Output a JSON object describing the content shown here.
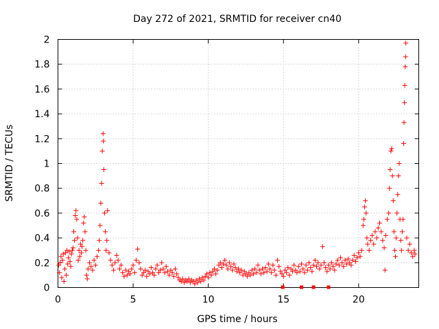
{
  "chart_data": {
    "type": "scatter",
    "title": "Day 272 of 2021, SRMTID for receiver cn40",
    "xlabel": "GPS time / hours",
    "ylabel": "SRMTID / TECUs",
    "xlim": [
      0,
      24
    ],
    "ylim": [
      0,
      2
    ],
    "x_ticks": [
      0,
      5,
      10,
      15,
      20
    ],
    "x_tick_labels": [
      "0",
      "5",
      "10",
      "15",
      "20"
    ],
    "y_ticks": [
      0,
      0.2,
      0.4,
      0.6,
      0.8,
      1,
      1.2,
      1.4,
      1.6,
      1.8,
      2
    ],
    "y_tick_labels": [
      "0",
      "0.2",
      "0.4",
      "0.6",
      "0.8",
      "1",
      "1.2",
      "1.4",
      "1.6",
      "1.8",
      "2"
    ],
    "grid": true,
    "marker": "+",
    "series": [
      {
        "name": "SRMTID",
        "color": "#ff0000",
        "points": [
          [
            0.05,
            0.18
          ],
          [
            0.1,
            0.12
          ],
          [
            0.15,
            0.2
          ],
          [
            0.2,
            0.25
          ],
          [
            0.25,
            0.08
          ],
          [
            0.3,
            0.22
          ],
          [
            0.35,
            0.27
          ],
          [
            0.4,
            0.05
          ],
          [
            0.45,
            0.15
          ],
          [
            0.5,
            0.28
          ],
          [
            0.55,
            0.1
          ],
          [
            0.6,
            0.3
          ],
          [
            0.65,
            0.19
          ],
          [
            0.7,
            0.24
          ],
          [
            0.75,
            0.29
          ],
          [
            0.8,
            0.21
          ],
          [
            0.85,
            0.17
          ],
          [
            0.9,
            0.27
          ],
          [
            0.95,
            0.3
          ],
          [
            1.0,
            0.32
          ],
          [
            1.05,
            0.45
          ],
          [
            1.1,
            0.38
          ],
          [
            1.15,
            0.58
          ],
          [
            1.2,
            0.62
          ],
          [
            1.25,
            0.55
          ],
          [
            1.3,
            0.4
          ],
          [
            1.35,
            0.22
          ],
          [
            1.4,
            0.3
          ],
          [
            1.45,
            0.25
          ],
          [
            1.5,
            0.35
          ],
          [
            1.55,
            0.28
          ],
          [
            1.6,
            0.33
          ],
          [
            1.65,
            0.38
          ],
          [
            1.7,
            0.52
          ],
          [
            1.75,
            0.57
          ],
          [
            1.8,
            0.45
          ],
          [
            1.85,
            0.3
          ],
          [
            1.9,
            0.1
          ],
          [
            1.95,
            0.07
          ],
          [
            2.0,
            0.15
          ],
          [
            2.1,
            0.2
          ],
          [
            2.2,
            0.17
          ],
          [
            2.3,
            0.14
          ],
          [
            2.4,
            0.22
          ],
          [
            2.5,
            0.18
          ],
          [
            2.6,
            0.25
          ],
          [
            2.7,
            0.3
          ],
          [
            2.75,
            0.38
          ],
          [
            2.8,
            0.5
          ],
          [
            2.85,
            0.68
          ],
          [
            2.9,
            0.84
          ],
          [
            2.95,
            1.1
          ],
          [
            3.0,
            1.24
          ],
          [
            3.02,
            1.18
          ],
          [
            3.05,
            0.95
          ],
          [
            3.1,
            0.6
          ],
          [
            3.15,
            0.45
          ],
          [
            3.2,
            0.3
          ],
          [
            3.25,
            0.38
          ],
          [
            3.3,
            0.62
          ],
          [
            3.4,
            0.28
          ],
          [
            3.5,
            0.22
          ],
          [
            3.6,
            0.18
          ],
          [
            3.7,
            0.14
          ],
          [
            3.8,
            0.2
          ],
          [
            3.9,
            0.26
          ],
          [
            4.0,
            0.22
          ],
          [
            4.1,
            0.15
          ],
          [
            4.2,
            0.18
          ],
          [
            4.3,
            0.12
          ],
          [
            4.4,
            0.09
          ],
          [
            4.5,
            0.14
          ],
          [
            4.6,
            0.1
          ],
          [
            4.7,
            0.13
          ],
          [
            4.8,
            0.11
          ],
          [
            4.9,
            0.15
          ],
          [
            5.0,
            0.18
          ],
          [
            5.1,
            0.12
          ],
          [
            5.2,
            0.22
          ],
          [
            5.3,
            0.31
          ],
          [
            5.4,
            0.2
          ],
          [
            5.5,
            0.15
          ],
          [
            5.6,
            0.1
          ],
          [
            5.7,
            0.12
          ],
          [
            5.8,
            0.14
          ],
          [
            5.9,
            0.09
          ],
          [
            6.0,
            0.13
          ],
          [
            6.1,
            0.11
          ],
          [
            6.2,
            0.16
          ],
          [
            6.3,
            0.12
          ],
          [
            6.4,
            0.1
          ],
          [
            6.5,
            0.15
          ],
          [
            6.6,
            0.18
          ],
          [
            6.7,
            0.12
          ],
          [
            6.8,
            0.14
          ],
          [
            6.9,
            0.2
          ],
          [
            7.0,
            0.15
          ],
          [
            7.1,
            0.12
          ],
          [
            7.2,
            0.17
          ],
          [
            7.3,
            0.13
          ],
          [
            7.4,
            0.1
          ],
          [
            7.5,
            0.14
          ],
          [
            7.6,
            0.12
          ],
          [
            7.7,
            0.09
          ],
          [
            7.8,
            0.15
          ],
          [
            7.9,
            0.11
          ],
          [
            8.0,
            0.08
          ],
          [
            8.1,
            0.06
          ],
          [
            8.2,
            0.05
          ],
          [
            8.3,
            0.07
          ],
          [
            8.4,
            0.04
          ],
          [
            8.5,
            0.06
          ],
          [
            8.6,
            0.05
          ],
          [
            8.7,
            0.07
          ],
          [
            8.8,
            0.04
          ],
          [
            8.9,
            0.06
          ],
          [
            9.0,
            0.05
          ],
          [
            9.1,
            0.03
          ],
          [
            9.2,
            0.06
          ],
          [
            9.3,
            0.04
          ],
          [
            9.4,
            0.07
          ],
          [
            9.5,
            0.05
          ],
          [
            9.6,
            0.08
          ],
          [
            9.7,
            0.06
          ],
          [
            9.8,
            0.09
          ],
          [
            9.9,
            0.11
          ],
          [
            10.0,
            0.08
          ],
          [
            10.1,
            0.12
          ],
          [
            10.2,
            0.1
          ],
          [
            10.3,
            0.13
          ],
          [
            10.4,
            0.15
          ],
          [
            10.5,
            0.11
          ],
          [
            10.6,
            0.14
          ],
          [
            10.7,
            0.18
          ],
          [
            10.8,
            0.2
          ],
          [
            10.9,
            0.16
          ],
          [
            11.0,
            0.19
          ],
          [
            11.1,
            0.22
          ],
          [
            11.2,
            0.18
          ],
          [
            11.3,
            0.15
          ],
          [
            11.4,
            0.2
          ],
          [
            11.5,
            0.17
          ],
          [
            11.6,
            0.14
          ],
          [
            11.7,
            0.19
          ],
          [
            11.8,
            0.16
          ],
          [
            11.9,
            0.13
          ],
          [
            12.0,
            0.15
          ],
          [
            12.1,
            0.12
          ],
          [
            12.2,
            0.14
          ],
          [
            12.3,
            0.1
          ],
          [
            12.4,
            0.13
          ],
          [
            12.5,
            0.11
          ],
          [
            12.6,
            0.09
          ],
          [
            12.7,
            0.12
          ],
          [
            12.8,
            0.1
          ],
          [
            12.9,
            0.14
          ],
          [
            13.0,
            0.11
          ],
          [
            13.1,
            0.15
          ],
          [
            13.2,
            0.12
          ],
          [
            13.3,
            0.18
          ],
          [
            13.4,
            0.14
          ],
          [
            13.5,
            0.11
          ],
          [
            13.6,
            0.15
          ],
          [
            13.7,
            0.12
          ],
          [
            13.8,
            0.16
          ],
          [
            13.9,
            0.13
          ],
          [
            14.0,
            0.19
          ],
          [
            14.1,
            0.15
          ],
          [
            14.2,
            0.12
          ],
          [
            14.3,
            0.18
          ],
          [
            14.4,
            0.14
          ],
          [
            14.5,
            0.1
          ],
          [
            14.6,
            0.22
          ],
          [
            14.7,
            0.17
          ],
          [
            14.8,
            0.13
          ],
          [
            14.9,
            0.11
          ],
          [
            15.0,
            0.09
          ],
          [
            15.1,
            0.14
          ],
          [
            15.2,
            0.12
          ],
          [
            15.3,
            0.16
          ],
          [
            15.4,
            0.1
          ],
          [
            15.5,
            0.15
          ],
          [
            15.6,
            0.13
          ],
          [
            15.7,
            0.18
          ],
          [
            15.8,
            0.14
          ],
          [
            15.9,
            0.12
          ],
          [
            16.0,
            0.17
          ],
          [
            16.1,
            0.13
          ],
          [
            16.2,
            0.19
          ],
          [
            16.3,
            0.15
          ],
          [
            16.4,
            0.12
          ],
          [
            16.5,
            0.18
          ],
          [
            16.6,
            0.14
          ],
          [
            16.7,
            0.2
          ],
          [
            16.8,
            0.16
          ],
          [
            16.9,
            0.13
          ],
          [
            17.0,
            0.18
          ],
          [
            17.1,
            0.22
          ],
          [
            17.2,
            0.17
          ],
          [
            17.3,
            0.2
          ],
          [
            17.4,
            0.15
          ],
          [
            17.5,
            0.18
          ],
          [
            17.6,
            0.33
          ],
          [
            17.7,
            0.2
          ],
          [
            17.8,
            0.16
          ],
          [
            17.9,
            0.13
          ],
          [
            18.0,
            0.18
          ],
          [
            18.1,
            0.15
          ],
          [
            18.2,
            0.2
          ],
          [
            18.3,
            0.17
          ],
          [
            18.4,
            0.14
          ],
          [
            18.5,
            0.19
          ],
          [
            18.6,
            0.22
          ],
          [
            18.7,
            0.18
          ],
          [
            18.8,
            0.24
          ],
          [
            18.9,
            0.2
          ],
          [
            19.0,
            0.17
          ],
          [
            19.1,
            0.22
          ],
          [
            19.2,
            0.19
          ],
          [
            19.3,
            0.23
          ],
          [
            19.4,
            0.2
          ],
          [
            19.5,
            0.18
          ],
          [
            19.6,
            0.22
          ],
          [
            19.7,
            0.26
          ],
          [
            19.8,
            0.21
          ],
          [
            19.9,
            0.24
          ],
          [
            20.0,
            0.28
          ],
          [
            20.1,
            0.25
          ],
          [
            20.2,
            0.3
          ],
          [
            20.3,
            0.5
          ],
          [
            20.35,
            0.55
          ],
          [
            20.4,
            0.65
          ],
          [
            20.45,
            0.7
          ],
          [
            20.5,
            0.6
          ],
          [
            20.55,
            0.4
          ],
          [
            20.6,
            0.35
          ],
          [
            20.7,
            0.3
          ],
          [
            20.8,
            0.38
          ],
          [
            20.9,
            0.42
          ],
          [
            21.0,
            0.35
          ],
          [
            21.1,
            0.45
          ],
          [
            21.2,
            0.4
          ],
          [
            21.3,
            0.48
          ],
          [
            21.4,
            0.52
          ],
          [
            21.5,
            0.45
          ],
          [
            21.6,
            0.38
          ],
          [
            21.7,
            0.32
          ],
          [
            21.75,
            0.14
          ],
          [
            21.8,
            0.42
          ],
          [
            21.9,
            0.55
          ],
          [
            22.0,
            0.6
          ],
          [
            22.05,
            0.8
          ],
          [
            22.1,
            0.95
          ],
          [
            22.15,
            1.1
          ],
          [
            22.2,
            1.12
          ],
          [
            22.25,
            0.9
          ],
          [
            22.3,
            0.7
          ],
          [
            22.35,
            0.45
          ],
          [
            22.4,
            0.3
          ],
          [
            22.45,
            0.25
          ],
          [
            22.5,
            0.4
          ],
          [
            22.55,
            0.6
          ],
          [
            22.6,
            0.75
          ],
          [
            22.65,
            0.9
          ],
          [
            22.7,
            1.0
          ],
          [
            22.75,
            0.55
          ],
          [
            22.8,
            0.38
          ],
          [
            22.85,
            0.3
          ],
          [
            22.9,
            0.45
          ],
          [
            22.95,
            0.55
          ],
          [
            23.0,
            1.16
          ],
          [
            23.02,
            1.33
          ],
          [
            23.05,
            1.49
          ],
          [
            23.07,
            1.63
          ],
          [
            23.1,
            1.78
          ],
          [
            23.12,
            1.86
          ],
          [
            23.14,
            1.97
          ],
          [
            23.2,
            0.4
          ],
          [
            23.3,
            0.3
          ],
          [
            23.4,
            0.35
          ],
          [
            23.5,
            0.28
          ],
          [
            23.6,
            0.25
          ],
          [
            23.7,
            0.3
          ],
          [
            23.75,
            0.27
          ]
        ]
      }
    ],
    "baseline_markers": {
      "color": "#ff0000",
      "x": [
        14.95,
        16.2,
        17.0,
        18.0
      ]
    }
  }
}
